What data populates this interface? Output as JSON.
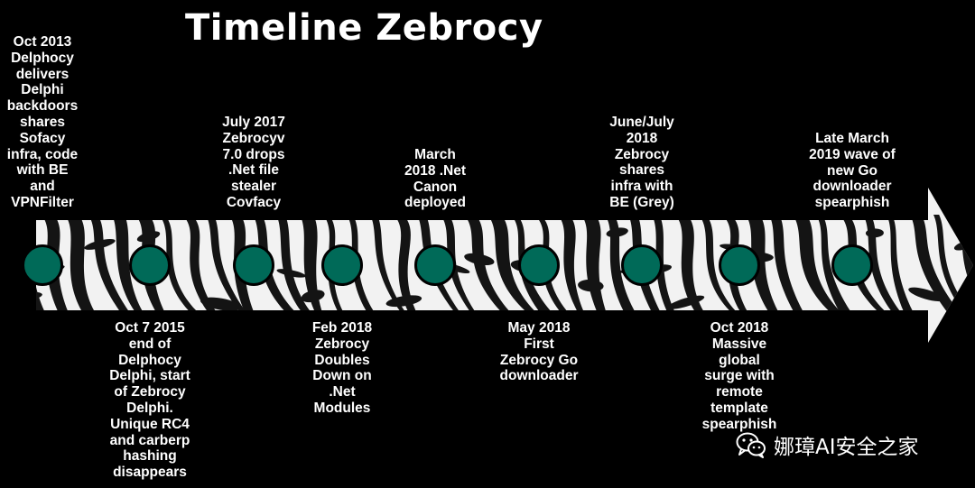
{
  "title": "Timeline Zebrocy",
  "colors": {
    "background": "#000000",
    "node_fill": "#006a58",
    "text": "#ffffff"
  },
  "events": [
    {
      "text": "Oct 2013\nDelphocy\ndelivers\nDelphi\nbackdoors\nshares\nSofacy\ninfra, code\nwith BE\nand\nVPNFilter",
      "position": "above"
    },
    {
      "text": "Oct 7 2015\nend of\nDelphocy\nDelphi, start\nof Zebrocy\nDelphi.\nUnique RC4\nand carberp\nhashing\ndisappears",
      "position": "below"
    },
    {
      "text": "July 2017\nZebrocyv\n7.0 drops\n.Net file\nstealer\nCovfacy",
      "position": "above"
    },
    {
      "text": "Feb 2018\nZebrocy\nDoubles\nDown on\n.Net\nModules",
      "position": "below"
    },
    {
      "text": "March\n2018 .Net\nCanon\ndeployed",
      "position": "above"
    },
    {
      "text": "May 2018\nFirst\nZebrocy Go\ndownloader",
      "position": "below"
    },
    {
      "text": "June/July\n2018\nZebrocy\nshares\ninfra with\nBE (Grey)",
      "position": "above"
    },
    {
      "text": "Oct 2018\nMassive\nglobal\nsurge with\nremote\ntemplate\nspearphish",
      "position": "below"
    },
    {
      "text": "Late March\n2019 wave of\nnew Go\ndownloader\nspearphish",
      "position": "above"
    }
  ],
  "watermark": {
    "icon": "wechat-icon",
    "text": "娜璋AI安全之家"
  }
}
